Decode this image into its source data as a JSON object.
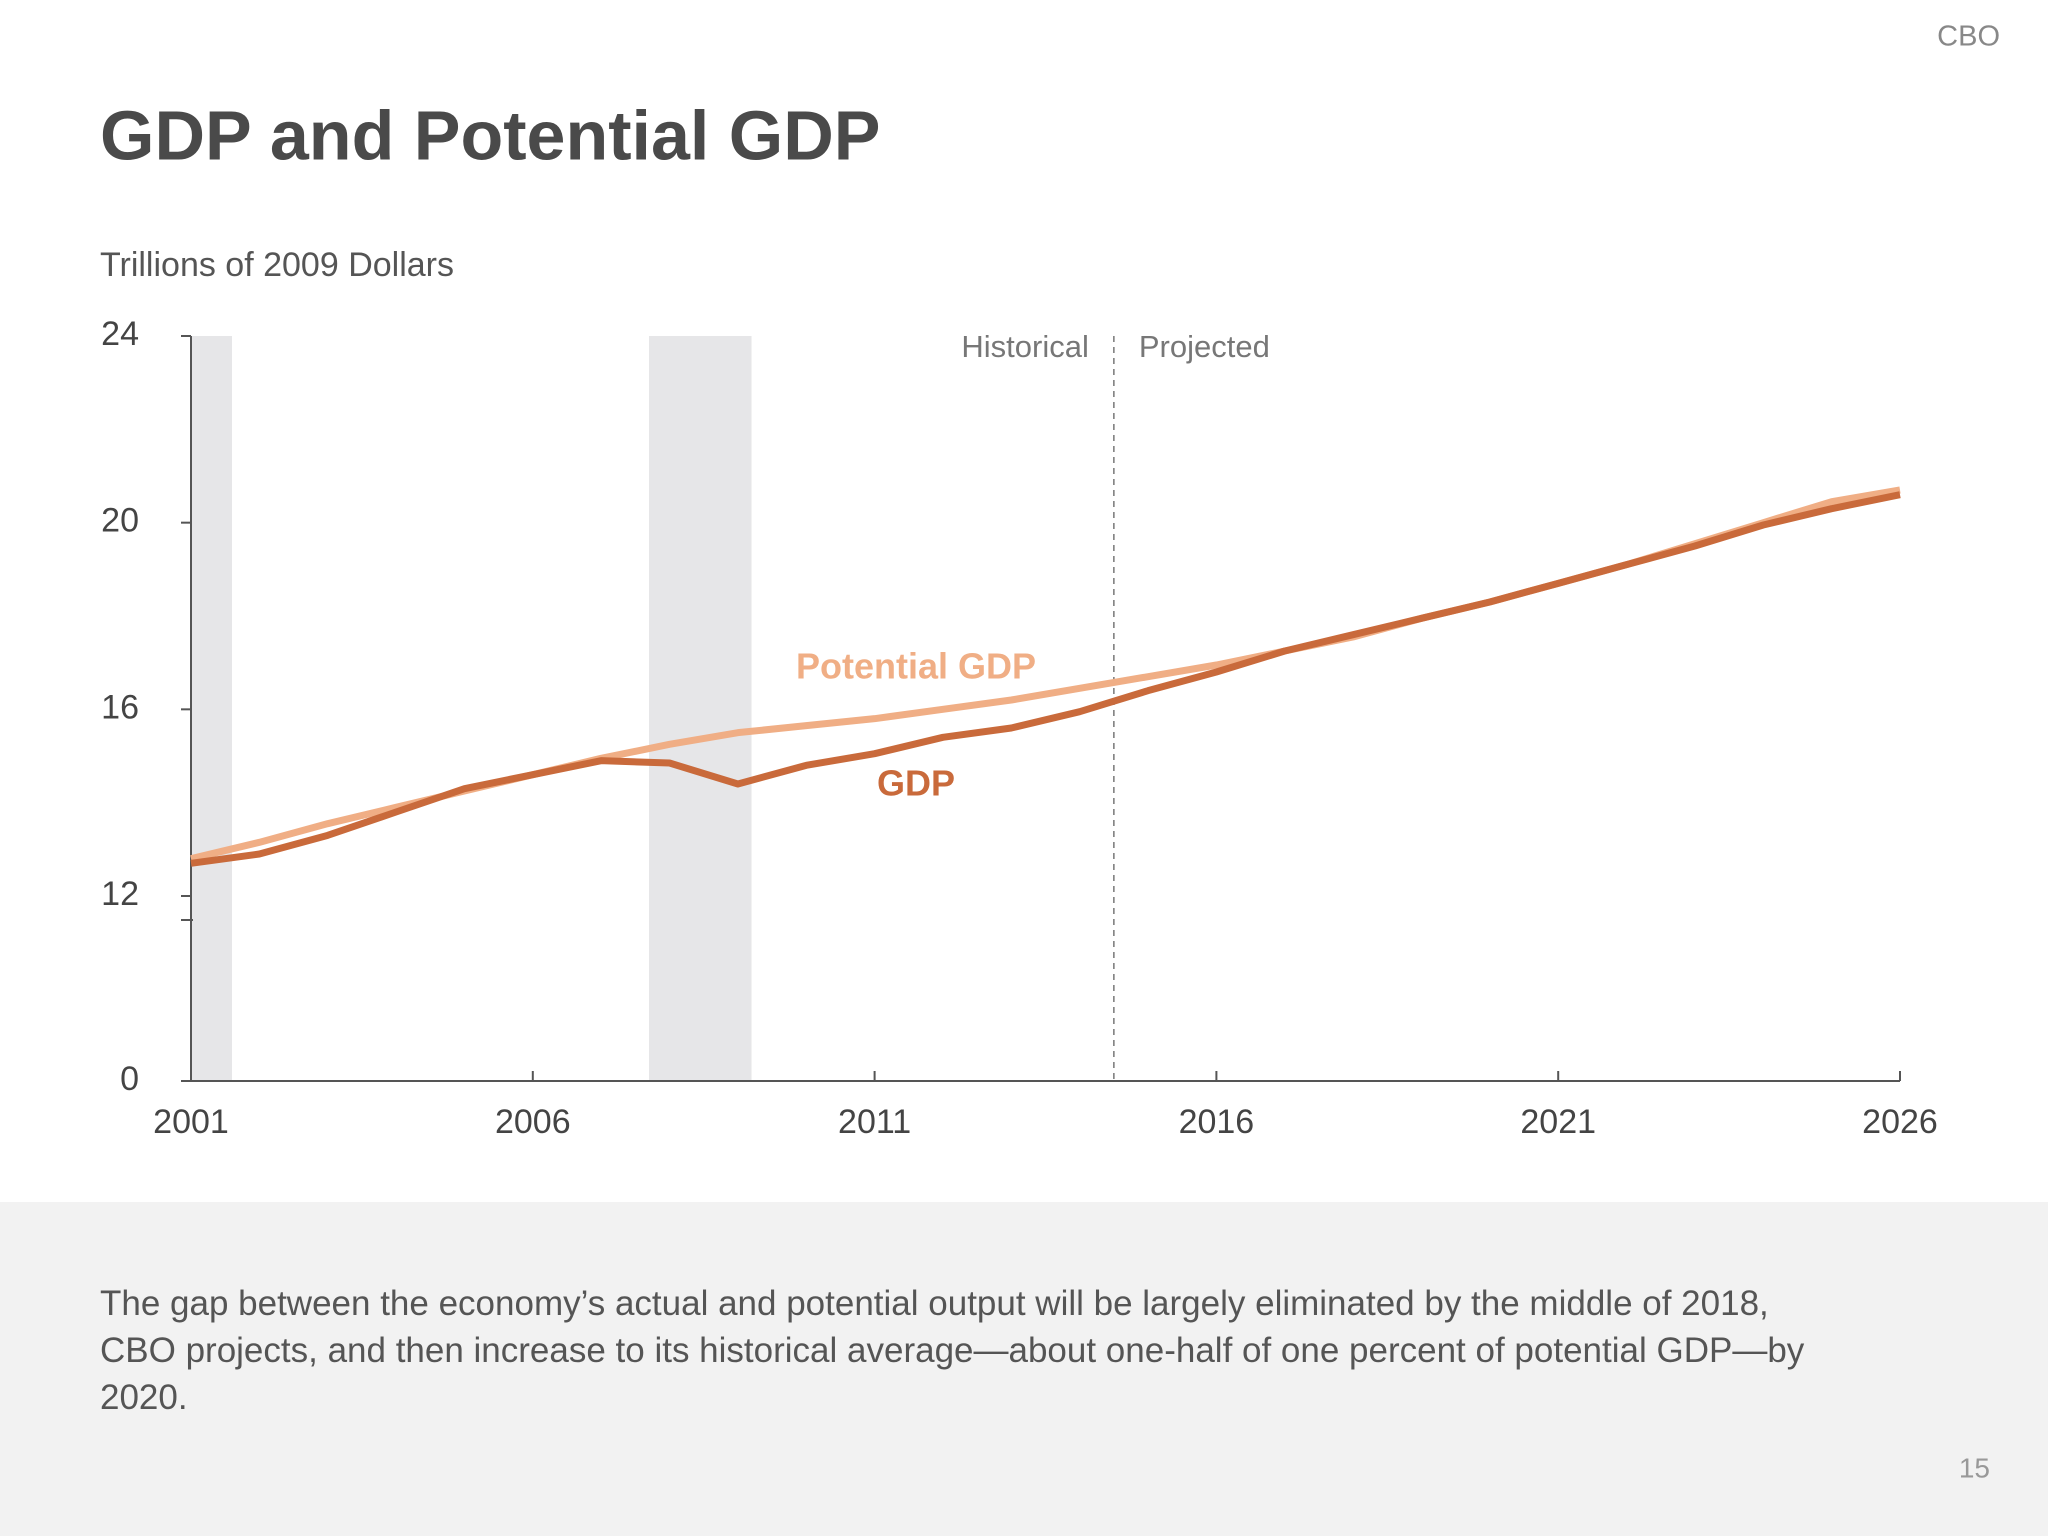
{
  "header": {
    "brand": "CBO",
    "title": "GDP and Potential GDP"
  },
  "chart_data": {
    "type": "line",
    "ylabel": "Trillions of 2009 Dollars",
    "x": [
      2001,
      2002,
      2003,
      2004,
      2005,
      2006,
      2007,
      2008,
      2009,
      2010,
      2011,
      2012,
      2013,
      2014,
      2015,
      2016,
      2017,
      2018,
      2019,
      2020,
      2021,
      2022,
      2023,
      2024,
      2025,
      2026
    ],
    "series": [
      {
        "name": "Potential GDP",
        "color": "#f0ae85",
        "values": [
          12.8,
          13.15,
          13.55,
          13.9,
          14.25,
          14.6,
          14.95,
          15.25,
          15.5,
          15.65,
          15.8,
          16.0,
          16.2,
          16.45,
          16.7,
          16.95,
          17.25,
          17.55,
          17.95,
          18.3,
          18.7,
          19.1,
          19.55,
          20.0,
          20.45,
          20.7
        ]
      },
      {
        "name": "GDP",
        "color": "#c96a3b",
        "values": [
          12.7,
          12.9,
          13.3,
          13.8,
          14.3,
          14.6,
          14.9,
          14.85,
          14.4,
          14.8,
          15.05,
          15.4,
          15.6,
          15.95,
          16.4,
          16.8,
          17.25,
          17.6,
          17.95,
          18.3,
          18.7,
          19.1,
          19.5,
          19.95,
          20.3,
          20.6
        ]
      }
    ],
    "xlim": [
      2001,
      2026
    ],
    "xticks": [
      2001,
      2006,
      2011,
      2016,
      2021,
      2026
    ],
    "ylim": [
      0,
      24
    ],
    "yticks": [
      0,
      12,
      16,
      20,
      24
    ],
    "shaded_ranges": [
      [
        2001,
        2001.6
      ],
      [
        2007.7,
        2009.2
      ]
    ],
    "shade_color": "#e6e6e8",
    "divider": {
      "x": 2014.5,
      "left_label": "Historical",
      "right_label": "Projected"
    }
  },
  "caption": "The gap between the economy’s actual and potential output will be largely eliminated by the middle of 2018, CBO projects, and then increase to its historical average—about one-half of one percent of potential GDP—by 2020.",
  "page_number": "15"
}
